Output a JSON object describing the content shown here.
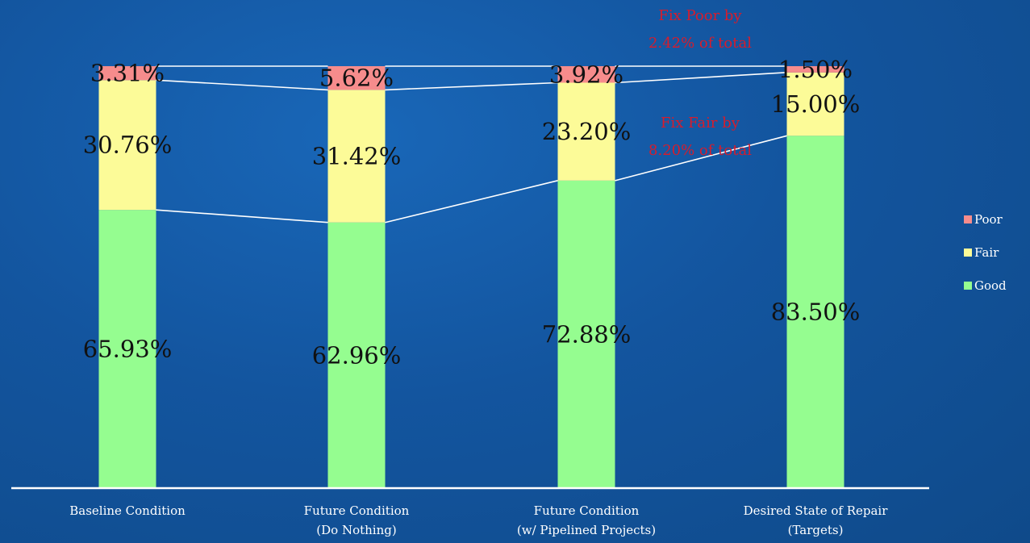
{
  "chart_data": {
    "type": "bar",
    "stacked": true,
    "normalized_percent": true,
    "categories": [
      [
        "Baseline Condition"
      ],
      [
        "Future Condition",
        "(Do Nothing)"
      ],
      [
        "Future Condition",
        "(w/ Pipelined Projects)"
      ],
      [
        "Desired State of Repair",
        "(Targets)"
      ]
    ],
    "series": [
      {
        "name": "Good",
        "color": "#95fd90",
        "values": [
          65.93,
          62.96,
          72.88,
          83.5
        ],
        "labels": [
          "65.93%",
          "62.96%",
          "72.88%",
          "83.50%"
        ]
      },
      {
        "name": "Fair",
        "color": "#fcfb98",
        "values": [
          30.76,
          31.42,
          23.2,
          15.0
        ],
        "labels": [
          "30.76%",
          "31.42%",
          "23.20%",
          "15.00%"
        ]
      },
      {
        "name": "Poor",
        "color": "#f68c8c",
        "values": [
          3.31,
          5.62,
          3.92,
          1.5
        ],
        "labels": [
          "3.31%",
          "5.62%",
          "3.92%",
          "1.50%"
        ]
      }
    ],
    "legend_order": [
      "Poor",
      "Fair",
      "Good"
    ],
    "legend_position": "right",
    "ylim": [
      0,
      100
    ],
    "grid": false,
    "connector_lines": true,
    "annotations": [
      {
        "lines": [
          "Fix Poor by",
          "2.42% of total"
        ],
        "color": "#d71c2c"
      },
      {
        "lines": [
          "Fix Fair by",
          "8.20% of total"
        ],
        "color": "#d71c2c"
      }
    ]
  }
}
